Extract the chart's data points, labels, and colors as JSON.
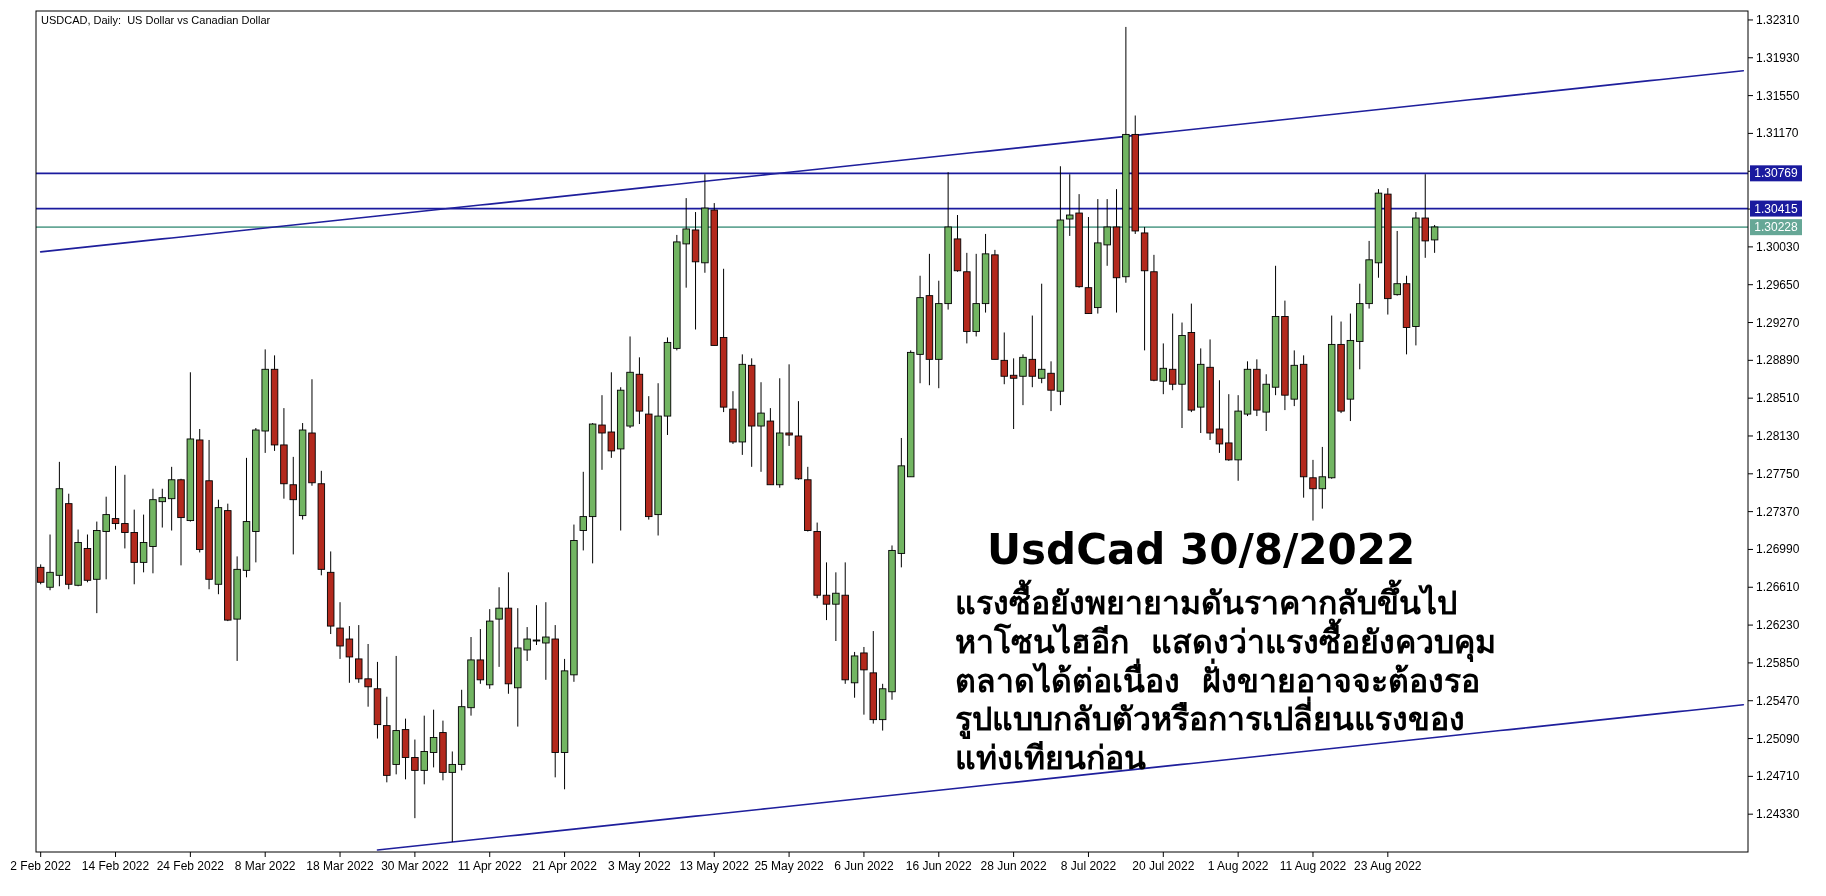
{
  "chart_data": {
    "type": "candlestick",
    "title": "USDCAD, Daily:  US Dollar vs Canadian Dollar",
    "annotations": [
      "UsdCad 30/8/2022",
      "แรงซื้อยังพยายามดันราคากลับขึ้นไป\nหาโซนไฮอีก  แสดงว่าแรงซื้อยังควบคุม\nตลาดได้ต่อเนื่อง  ฝั่งขายอาจจะต้องรอ\nรูปแบบกลับตัวหรือการเปลี่ยนแรงของ\nแท่งเทียนก่อน"
    ],
    "categories": [
      "2 Feb 2022",
      null,
      null,
      null,
      null,
      null,
      null,
      null,
      "14 Feb 2022",
      null,
      null,
      null,
      null,
      null,
      null,
      null,
      "24 Feb 2022",
      null,
      null,
      null,
      null,
      null,
      null,
      null,
      "8 Mar 2022",
      null,
      null,
      null,
      null,
      null,
      null,
      null,
      "18 Mar 2022",
      null,
      null,
      null,
      null,
      null,
      null,
      null,
      "30 Mar 2022",
      null,
      null,
      null,
      null,
      null,
      null,
      null,
      "11 Apr 2022",
      null,
      null,
      null,
      null,
      null,
      null,
      null,
      "21 Apr 2022",
      null,
      null,
      null,
      null,
      null,
      null,
      null,
      "3 May 2022",
      null,
      null,
      null,
      null,
      null,
      null,
      null,
      "13 May 2022",
      null,
      null,
      null,
      null,
      null,
      null,
      null,
      "25 May 2022",
      null,
      null,
      null,
      null,
      null,
      null,
      null,
      "6 Jun 2022",
      null,
      null,
      null,
      null,
      null,
      null,
      null,
      "16 Jun 2022",
      null,
      null,
      null,
      null,
      null,
      null,
      null,
      "28 Jun 2022",
      null,
      null,
      null,
      null,
      null,
      null,
      null,
      "8 Jul 2022",
      null,
      null,
      null,
      null,
      null,
      null,
      null,
      "20 Jul 2022",
      null,
      null,
      null,
      null,
      null,
      null,
      null,
      "1 Aug 2022",
      null,
      null,
      null,
      null,
      null,
      null,
      null,
      "11 Aug 2022",
      null,
      null,
      null,
      null,
      null,
      null,
      null,
      "23 Aug 2022",
      null,
      null,
      null,
      null,
      null,
      null,
      null,
      null,
      null,
      null,
      null,
      null,
      null,
      null,
      null,
      null,
      null,
      null,
      null,
      null,
      null,
      null,
      null,
      null,
      null,
      null,
      null,
      null,
      null,
      null,
      null,
      null,
      null,
      null,
      null,
      null,
      null,
      null
    ],
    "ohlc": [
      [
        1.2681,
        1.2684,
        1.2664,
        1.2666
      ],
      [
        1.2661,
        1.2714,
        1.2658,
        1.2676
      ],
      [
        1.2673,
        1.2787,
        1.2662,
        1.276
      ],
      [
        1.2745,
        1.2755,
        1.2659,
        1.2664
      ],
      [
        1.2663,
        1.2719,
        1.2662,
        1.2706
      ],
      [
        1.27,
        1.2714,
        1.2666,
        1.2668
      ],
      [
        1.2669,
        1.2727,
        1.2635,
        1.2718
      ],
      [
        1.2717,
        1.2752,
        1.2669,
        1.2734
      ],
      [
        1.273,
        1.2783,
        1.2719,
        1.2725
      ],
      [
        1.2725,
        1.2774,
        1.27,
        1.2716
      ],
      [
        1.2716,
        1.2739,
        1.2664,
        1.2686
      ],
      [
        1.2686,
        1.2734,
        1.2676,
        1.2706
      ],
      [
        1.2702,
        1.276,
        1.2675,
        1.2749
      ],
      [
        1.2747,
        1.276,
        1.2721,
        1.2751
      ],
      [
        1.275,
        1.2782,
        1.2718,
        1.2769
      ],
      [
        1.2769,
        1.277,
        1.2683,
        1.2731
      ],
      [
        1.2728,
        1.2877,
        1.2727,
        1.281
      ],
      [
        1.2809,
        1.282,
        1.2696,
        1.2699
      ],
      [
        1.2768,
        1.2809,
        1.2659,
        1.2669
      ],
      [
        1.2664,
        1.2749,
        1.2654,
        1.2741
      ],
      [
        1.2738,
        1.2745,
        1.2627,
        1.2628
      ],
      [
        1.2629,
        1.2692,
        1.2587,
        1.2679
      ],
      [
        1.2678,
        1.2791,
        1.2671,
        1.2727
      ],
      [
        1.2717,
        1.2821,
        1.2686,
        1.2819
      ],
      [
        1.2818,
        1.29,
        1.2796,
        1.288
      ],
      [
        1.288,
        1.2894,
        1.2798,
        1.2804
      ],
      [
        1.2804,
        1.2841,
        1.275,
        1.2765
      ],
      [
        1.2764,
        1.2792,
        1.2694,
        1.2749
      ],
      [
        1.2733,
        1.2826,
        1.2729,
        1.2819
      ],
      [
        1.2816,
        1.287,
        1.2763,
        1.2766
      ],
      [
        1.2765,
        1.2778,
        1.2673,
        1.2679
      ],
      [
        1.2676,
        1.2697,
        1.2614,
        1.2622
      ],
      [
        1.262,
        1.2646,
        1.2589,
        1.2602
      ],
      [
        1.2609,
        1.2622,
        1.2565,
        1.2591
      ],
      [
        1.2589,
        1.2623,
        1.2565,
        1.2569
      ],
      [
        1.2569,
        1.2604,
        1.2541,
        1.2561
      ],
      [
        1.2559,
        1.2586,
        1.2509,
        1.2523
      ],
      [
        1.2522,
        1.2551,
        1.2465,
        1.2472
      ],
      [
        1.2483,
        1.2592,
        1.2473,
        1.2517
      ],
      [
        1.2518,
        1.2529,
        1.2468,
        1.249
      ],
      [
        1.249,
        1.2508,
        1.2429,
        1.2477
      ],
      [
        1.2477,
        1.2532,
        1.2463,
        1.2496
      ],
      [
        1.2495,
        1.2538,
        1.248,
        1.251
      ],
      [
        1.2515,
        1.2527,
        1.2467,
        1.2475
      ],
      [
        1.2475,
        1.2496,
        1.2405,
        1.2483
      ],
      [
        1.2483,
        1.2558,
        1.2477,
        1.2541
      ],
      [
        1.254,
        1.2611,
        1.2532,
        1.2588
      ],
      [
        1.2588,
        1.2619,
        1.2564,
        1.2568
      ],
      [
        1.2563,
        1.2639,
        1.2559,
        1.2627
      ],
      [
        1.2629,
        1.2661,
        1.2581,
        1.264
      ],
      [
        1.264,
        1.2676,
        1.2554,
        1.2564
      ],
      [
        1.256,
        1.264,
        1.2521,
        1.26
      ],
      [
        1.2598,
        1.2621,
        1.2587,
        1.2609
      ],
      [
        1.2608,
        1.2643,
        1.2603,
        1.2608
      ],
      [
        1.2605,
        1.2646,
        1.2568,
        1.2611
      ],
      [
        1.2609,
        1.2623,
        1.247,
        1.2495
      ],
      [
        1.2495,
        1.2589,
        1.2458,
        1.2577
      ],
      [
        1.2573,
        1.2724,
        1.2566,
        1.2708
      ],
      [
        1.2718,
        1.2777,
        1.2698,
        1.2732
      ],
      [
        1.2732,
        1.2826,
        1.2685,
        1.2825
      ],
      [
        1.2824,
        1.2854,
        1.2779,
        1.2816
      ],
      [
        1.2817,
        1.2877,
        1.2791,
        1.2798
      ],
      [
        1.28,
        1.2862,
        1.2718,
        1.2859
      ],
      [
        1.2823,
        1.2913,
        1.2821,
        1.2877
      ],
      [
        1.2875,
        1.2892,
        1.2825,
        1.2838
      ],
      [
        1.2835,
        1.2853,
        1.2729,
        1.2732
      ],
      [
        1.2734,
        1.2866,
        1.2713,
        1.2833
      ],
      [
        1.2833,
        1.2912,
        1.2814,
        1.2907
      ],
      [
        1.2901,
        1.3015,
        1.2899,
        1.3008
      ],
      [
        1.3006,
        1.3052,
        1.2962,
        1.3021
      ],
      [
        1.302,
        1.3038,
        1.292,
        1.2988
      ],
      [
        1.2987,
        1.3076,
        1.2977,
        1.3042
      ],
      [
        1.304,
        1.3047,
        1.2904,
        1.2904
      ],
      [
        1.2912,
        1.2981,
        1.2837,
        1.2842
      ],
      [
        1.284,
        1.2858,
        1.2805,
        1.2807
      ],
      [
        1.2807,
        1.2895,
        1.2794,
        1.2885
      ],
      [
        1.2884,
        1.2891,
        1.2782,
        1.2823
      ],
      [
        1.2823,
        1.2867,
        1.2777,
        1.2836
      ],
      [
        1.2828,
        1.2841,
        1.2764,
        1.2764
      ],
      [
        1.2764,
        1.2871,
        1.2761,
        1.2816
      ],
      [
        1.2816,
        1.2885,
        1.2803,
        1.2814
      ],
      [
        1.2813,
        1.2848,
        1.2769,
        1.277
      ],
      [
        1.2769,
        1.2782,
        1.2717,
        1.2718
      ],
      [
        1.2717,
        1.2726,
        1.265,
        1.2653
      ],
      [
        1.2653,
        1.2686,
        1.2628,
        1.2644
      ],
      [
        1.2644,
        1.2676,
        1.2607,
        1.2655
      ],
      [
        1.2653,
        1.2686,
        1.2564,
        1.2568
      ],
      [
        1.2565,
        1.2596,
        1.255,
        1.2592
      ],
      [
        1.2595,
        1.2601,
        1.2533,
        1.2578
      ],
      [
        1.2575,
        1.2617,
        1.2524,
        1.2528
      ],
      [
        1.2528,
        1.2564,
        1.2517,
        1.2559
      ],
      [
        1.2556,
        1.2703,
        1.2548,
        1.2698
      ],
      [
        1.2695,
        1.2811,
        1.2681,
        1.2783
      ],
      [
        1.2772,
        1.2899,
        1.2772,
        1.2897
      ],
      [
        1.2895,
        1.2974,
        1.2866,
        1.2952
      ],
      [
        1.2954,
        1.2996,
        1.2864,
        1.289
      ],
      [
        1.289,
        1.2969,
        1.2861,
        1.2946
      ],
      [
        1.2946,
        1.3078,
        1.294,
        1.3023
      ],
      [
        1.3011,
        1.3035,
        1.2978,
        1.2979
      ],
      [
        1.2978,
        1.2997,
        1.2906,
        1.2918
      ],
      [
        1.2918,
        1.2996,
        1.2913,
        1.2946
      ],
      [
        1.2946,
        1.3016,
        1.2937,
        1.2996
      ],
      [
        1.2995,
        1.3,
        1.289,
        1.289
      ],
      [
        1.2889,
        1.2917,
        1.2865,
        1.2873
      ],
      [
        1.2874,
        1.2891,
        1.282,
        1.2871
      ],
      [
        1.2873,
        1.2895,
        1.2844,
        1.2892
      ],
      [
        1.289,
        1.2934,
        1.2862,
        1.2873
      ],
      [
        1.2871,
        1.2966,
        1.2866,
        1.288
      ],
      [
        1.2876,
        1.2888,
        1.2838,
        1.2859
      ],
      [
        1.2858,
        1.3084,
        1.2844,
        1.303
      ],
      [
        1.3031,
        1.3076,
        1.3014,
        1.3035
      ],
      [
        1.3037,
        1.3056,
        1.2962,
        1.2963
      ],
      [
        1.2962,
        1.3033,
        1.2936,
        1.2936
      ],
      [
        1.2942,
        1.3051,
        1.2936,
        1.3007
      ],
      [
        1.3005,
        1.3051,
        1.2984,
        1.3023
      ],
      [
        1.3023,
        1.3061,
        1.2937,
        1.2972
      ],
      [
        1.2973,
        1.3224,
        1.2967,
        1.3116
      ],
      [
        1.3116,
        1.3135,
        1.3016,
        1.3019
      ],
      [
        1.3017,
        1.3023,
        1.2899,
        1.2979
      ],
      [
        1.2978,
        1.2995,
        1.2868,
        1.2869
      ],
      [
        1.2868,
        1.2906,
        1.2855,
        1.2881
      ],
      [
        1.288,
        1.2936,
        1.2859,
        1.2865
      ],
      [
        1.2865,
        1.2927,
        1.2821,
        1.2914
      ],
      [
        1.2917,
        1.2946,
        1.2837,
        1.2839
      ],
      [
        1.2842,
        1.2901,
        1.2816,
        1.2885
      ],
      [
        1.2882,
        1.291,
        1.2809,
        1.2816
      ],
      [
        1.282,
        1.2869,
        1.2796,
        1.2805
      ],
      [
        1.2806,
        1.2855,
        1.2788,
        1.2789
      ],
      [
        1.2789,
        1.2854,
        1.2768,
        1.2838
      ],
      [
        1.2835,
        1.2888,
        1.2833,
        1.288
      ],
      [
        1.288,
        1.289,
        1.2833,
        1.2839
      ],
      [
        1.2837,
        1.2875,
        1.2818,
        1.2865
      ],
      [
        1.2862,
        1.2984,
        1.2854,
        1.2933
      ],
      [
        1.2933,
        1.2949,
        1.2839,
        1.2854
      ],
      [
        1.285,
        1.2899,
        1.2843,
        1.2884
      ],
      [
        1.2885,
        1.2894,
        1.2751,
        1.2772
      ],
      [
        1.2771,
        1.2789,
        1.2728,
        1.276
      ],
      [
        1.276,
        1.2802,
        1.274,
        1.2772
      ],
      [
        1.2771,
        1.2934,
        1.277,
        1.2905
      ],
      [
        1.2905,
        1.2928,
        1.2836,
        1.2838
      ],
      [
        1.285,
        1.2936,
        1.2828,
        1.2909
      ],
      [
        1.2908,
        1.2966,
        1.288,
        1.2946
      ],
      [
        1.2946,
        1.3009,
        1.2941,
        1.299
      ],
      [
        1.2987,
        1.3061,
        1.2972,
        1.3057
      ],
      [
        1.3056,
        1.3062,
        1.2935,
        1.2951
      ],
      [
        1.2955,
        1.3019,
        1.2954,
        1.2966
      ],
      [
        1.2966,
        1.2974,
        1.2895,
        1.2922
      ],
      [
        1.2923,
        1.3038,
        1.2904,
        1.3032
      ],
      [
        1.3032,
        1.3076,
        1.2992,
        1.3009
      ],
      [
        1.301,
        1.3025,
        1.2997,
        1.3023
      ],
      null,
      null,
      null,
      null,
      null,
      null,
      null,
      null,
      null,
      null,
      null,
      null,
      null,
      null,
      null,
      null,
      null,
      null,
      null,
      null,
      null,
      null,
      null,
      null,
      null,
      null,
      null,
      null,
      null,
      null,
      null,
      null,
      null
    ],
    "colors": [
      "#b3291d",
      "#72b562",
      "#72b562",
      "#b3291d",
      "#72b562",
      "#b3291d",
      "#72b562",
      "#72b562",
      "#b3291d",
      "#b3291d",
      "#b3291d",
      "#72b562",
      "#72b562",
      "#72b562",
      "#72b562",
      "#b3291d",
      "#72b562",
      "#b3291d",
      "#b3291d",
      "#72b562",
      "#b3291d",
      "#72b562",
      "#72b562",
      "#72b562",
      "#72b562",
      "#b3291d",
      "#b3291d",
      "#b3291d",
      "#72b562",
      "#b3291d",
      "#b3291d",
      "#b3291d",
      "#b3291d",
      "#b3291d",
      "#b3291d",
      "#b3291d",
      "#b3291d",
      "#b3291d",
      "#72b562",
      "#b3291d",
      "#b3291d",
      "#72b562",
      "#72b562",
      "#b3291d",
      "#72b562",
      "#72b562",
      "#72b562",
      "#b3291d",
      "#72b562",
      "#72b562",
      "#b3291d",
      "#72b562",
      "#72b562",
      "#72b562",
      "#72b562",
      "#b3291d",
      "#72b562",
      "#72b562",
      "#72b562",
      "#72b562",
      "#b3291d",
      "#b3291d",
      "#72b562",
      "#72b562",
      "#b3291d",
      "#b3291d",
      "#72b562",
      "#72b562",
      "#72b562",
      "#72b562",
      "#b3291d",
      "#72b562",
      "#b3291d",
      "#b3291d",
      "#b3291d",
      "#72b562",
      "#b3291d",
      "#72b562",
      "#b3291d",
      "#72b562",
      "#b3291d",
      "#b3291d",
      "#b3291d",
      "#b3291d",
      "#b3291d",
      "#72b562",
      "#b3291d",
      "#72b562",
      "#b3291d",
      "#b3291d",
      "#72b562",
      "#72b562",
      "#72b562",
      "#72b562",
      "#72b562",
      "#b3291d",
      "#72b562",
      "#72b562",
      "#b3291d",
      "#b3291d",
      "#72b562",
      "#72b562",
      "#b3291d",
      "#b3291d",
      "#b3291d",
      "#72b562",
      "#b3291d",
      "#72b562",
      "#b3291d",
      "#72b562",
      "#72b562",
      "#b3291d",
      "#b3291d",
      "#72b562",
      "#72b562",
      "#b3291d",
      "#72b562",
      "#b3291d",
      "#b3291d",
      "#b3291d",
      "#72b562",
      "#b3291d",
      "#72b562",
      "#b3291d",
      "#72b562",
      "#b3291d",
      "#b3291d",
      "#b3291d",
      "#72b562",
      "#72b562",
      "#b3291d",
      "#72b562",
      "#72b562",
      "#b3291d",
      "#72b562",
      "#b3291d",
      "#b3291d",
      "#72b562",
      "#72b562",
      "#b3291d",
      "#72b562",
      "#72b562",
      "#72b562",
      "#72b562",
      "#b3291d",
      "#72b562",
      "#b3291d",
      "#72b562",
      "#b3291d",
      "#72b562",
      null,
      null,
      null,
      null,
      null,
      null,
      null,
      null,
      null,
      null,
      null,
      null,
      null,
      null,
      null,
      null,
      null,
      null,
      null,
      null,
      null,
      null,
      null,
      null,
      null,
      null,
      null,
      null,
      null,
      null,
      null,
      null,
      null
    ],
    "series": [
      {
        "type": "line",
        "color": "#1f1f9c",
        "values": [
          1.2998,
          1.2999,
          1.3,
          1.3001,
          1.3002,
          1.3003,
          1.3004,
          1.3005,
          1.3006,
          1.3007,
          1.3008,
          1.3009,
          1.301,
          1.3011,
          1.3012,
          1.3013,
          1.3014,
          1.3015,
          1.3016,
          1.3017,
          1.3018,
          1.3019,
          1.302,
          1.3021,
          1.3022,
          1.3023,
          1.3024,
          1.3025,
          1.3026,
          1.3027,
          1.3028,
          1.3029,
          1.303,
          1.3031,
          1.3032,
          1.3033,
          1.3034,
          1.3035,
          1.3036,
          1.3037,
          1.3038,
          1.3039,
          1.304,
          1.3041,
          1.3042,
          1.3043,
          1.3044,
          1.3045,
          1.3046,
          1.3047,
          1.3048,
          1.3049,
          1.305,
          1.3051,
          1.3052,
          1.3053,
          1.3054,
          1.3055,
          1.3056,
          1.3057,
          1.3058,
          1.3059,
          1.306,
          1.3061,
          1.3062,
          1.3063,
          1.3064,
          1.3065,
          1.3066,
          1.3067,
          1.3068,
          1.3069,
          1.307,
          1.3071,
          1.3072,
          1.3073,
          1.3074,
          1.3075,
          1.3076,
          1.3077,
          1.3078,
          1.3079,
          1.308,
          1.3081,
          1.3082,
          1.3083,
          1.3084,
          1.3085,
          1.3086,
          1.3087,
          1.3088,
          1.3089,
          1.309,
          1.3091,
          1.3092,
          1.3093,
          1.3094,
          1.3095,
          1.3096,
          1.3097,
          1.3098,
          1.3099,
          1.31,
          1.3101,
          1.3102,
          1.3103,
          1.3104,
          1.3105,
          1.3106,
          1.3107,
          1.3108,
          1.3109,
          1.311,
          1.3111,
          1.3112,
          1.3113,
          1.3114,
          1.3115,
          1.3116,
          1.3117,
          1.3118,
          1.3119,
          1.312,
          1.3121,
          1.3122,
          1.3123,
          1.3124,
          1.3125,
          1.3126,
          1.3127,
          1.3128,
          1.3129,
          1.313,
          1.3131,
          1.3132,
          1.3133,
          1.3134,
          1.3135,
          1.3136,
          1.3137,
          1.3138,
          1.3139,
          1.314,
          1.3141,
          1.3142,
          1.3143,
          1.3144,
          1.3145,
          1.3146,
          1.3147,
          1.3148,
          1.3149,
          1.315,
          1.3151,
          1.3152,
          1.3153,
          1.3154,
          1.3155,
          1.3156,
          1.3157,
          1.3158,
          1.3159,
          1.316,
          1.3161,
          1.3162,
          1.3163,
          1.3164,
          1.3165,
          1.3166,
          1.3167,
          1.3168,
          1.3169,
          1.317,
          1.3171,
          1.3172,
          1.3173,
          1.3174,
          1.3175,
          1.3176,
          1.3177,
          1.3178,
          1.3179,
          1.318
        ]
      },
      {
        "type": "line",
        "color": "#1f1f9c",
        "values": [
          null,
          null,
          null,
          null,
          null,
          null,
          null,
          null,
          null,
          null,
          null,
          null,
          null,
          null,
          null,
          null,
          null,
          null,
          null,
          null,
          null,
          null,
          null,
          null,
          null,
          null,
          null,
          null,
          null,
          null,
          null,
          null,
          null,
          null,
          null,
          null,
          1.2397,
          1.2398,
          1.2399,
          1.24,
          1.2401,
          1.2402,
          1.2403,
          1.2404,
          1.2405,
          1.2406,
          1.2407,
          1.2408,
          1.2409,
          1.241,
          1.2411,
          1.2412,
          1.2413,
          1.2414,
          1.2415,
          1.2416,
          1.2417,
          1.2418,
          1.2419,
          1.242,
          1.2421,
          1.2422,
          1.2423,
          1.2424,
          1.2425,
          1.2426,
          1.2427,
          1.2428,
          1.2429,
          1.243,
          1.2431,
          1.2432,
          1.2433,
          1.2434,
          1.2435,
          1.2436,
          1.2437,
          1.2438,
          1.2439,
          1.244,
          1.2441,
          1.2442,
          1.2443,
          1.2444,
          1.2445,
          1.2446,
          1.2447,
          1.2448,
          1.2449,
          1.245,
          1.2451,
          1.2452,
          1.2453,
          1.2454,
          1.2455,
          1.2456,
          1.2457,
          1.2458,
          1.2459,
          1.246,
          1.2461,
          1.2462,
          1.2463,
          1.2464,
          1.2465,
          1.2466,
          1.2467,
          1.2468,
          1.2469,
          1.247,
          1.2471,
          1.2472,
          1.2473,
          1.2474,
          1.2475,
          1.2476,
          1.2477,
          1.2478,
          1.2479,
          1.248,
          1.2481,
          1.2482,
          1.2483,
          1.2484,
          1.2485,
          1.2486,
          1.2487,
          1.2488,
          1.2489,
          1.249,
          1.2491,
          1.2492,
          1.2493,
          1.2494,
          1.2495,
          1.2496,
          1.2497,
          1.2498,
          1.2499,
          1.25,
          1.2501,
          1.2502,
          1.2503,
          1.2504,
          1.2505,
          1.2506,
          1.2507,
          1.2508,
          1.2509,
          1.251,
          1.2511,
          1.2512,
          1.2513,
          1.2514,
          1.2515,
          1.2516,
          1.2517,
          1.2518,
          1.2519,
          1.252,
          1.2521,
          1.2522,
          1.2523,
          1.2524,
          1.2525,
          1.2526,
          1.2527,
          1.2528,
          1.2529,
          1.253,
          1.2531,
          1.2532,
          1.2533,
          1.2534,
          1.2535,
          1.2536,
          1.2537,
          1.2538,
          1.2539,
          1.254,
          1.2541,
          1.2542,
          1.2543
        ]
      }
    ],
    "ref_lines": [
      {
        "axis": "y",
        "value": 1.30769,
        "label": "1.30769",
        "color": "#1a1a9e"
      },
      {
        "axis": "y",
        "value": 1.30415,
        "label": "1.30415",
        "color": "#1a1a9e"
      },
      {
        "axis": "y",
        "value": 1.30228,
        "label": "1.30228",
        "color": "#66a796"
      }
    ],
    "ylim": [
      1.2395,
      1.324
    ],
    "yticks": [
      {
        "value": 1.2433,
        "label": "1.24330"
      },
      {
        "value": 1.2471,
        "label": "1.24710"
      },
      {
        "value": 1.2509,
        "label": "1.25090"
      },
      {
        "value": 1.2547,
        "label": "1.25470"
      },
      {
        "value": 1.2585,
        "label": "1.25850"
      },
      {
        "value": 1.2623,
        "label": "1.26230"
      },
      {
        "value": 1.2661,
        "label": "1.26610"
      },
      {
        "value": 1.2699,
        "label": "1.26990"
      },
      {
        "value": 1.2737,
        "label": "1.27370"
      },
      {
        "value": 1.2775,
        "label": "1.27750"
      },
      {
        "value": 1.2813,
        "label": "1.28130"
      },
      {
        "value": 1.2851,
        "label": "1.28510"
      },
      {
        "value": 1.2889,
        "label": "1.28890"
      },
      {
        "value": 1.2927,
        "label": "1.29270"
      },
      {
        "value": 1.2965,
        "label": "1.29650"
      },
      {
        "value": 1.3003,
        "label": "1.30030"
      },
      {
        "value": 1.3041,
        "label": null
      },
      {
        "value": 1.3079,
        "label": null
      },
      {
        "value": 1.3117,
        "label": "1.31170"
      },
      {
        "value": 1.3155,
        "label": "1.31550"
      },
      {
        "value": 1.3193,
        "label": "1.31930"
      },
      {
        "value": 1.3231,
        "label": "1.32310"
      }
    ]
  }
}
